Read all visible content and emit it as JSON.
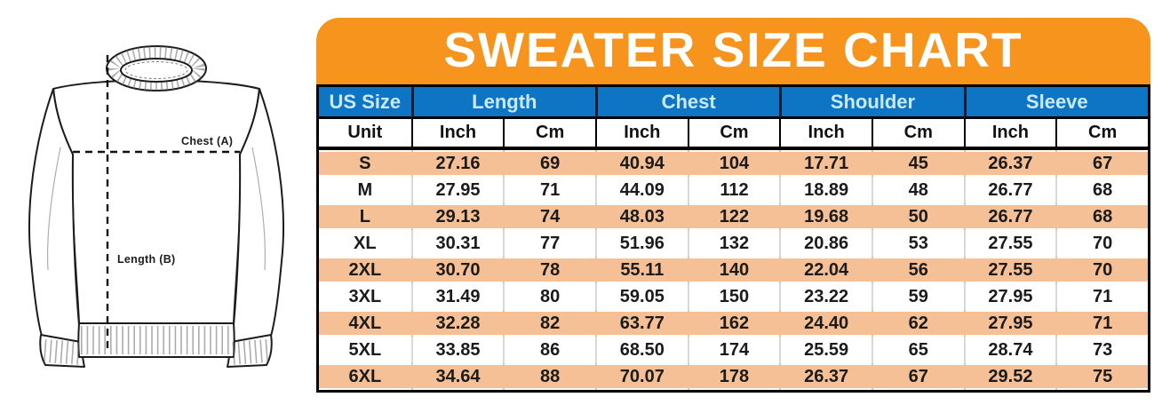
{
  "figure": {
    "chest_label": "Chest (A)",
    "length_label": "Length (B)"
  },
  "banner": {
    "title": "SWEATER SIZE CHART"
  },
  "table": {
    "group_headers": [
      {
        "label": "US Size"
      },
      {
        "label": "Length"
      },
      {
        "label": "Chest"
      },
      {
        "label": "Shoulder"
      },
      {
        "label": "Sleeve"
      }
    ],
    "unit_row": [
      "Unit",
      "Inch",
      "Cm",
      "Inch",
      "Cm",
      "Inch",
      "Cm",
      "Inch",
      "Cm"
    ],
    "rows": [
      {
        "size": "S",
        "values": [
          "27.16",
          "69",
          "40.94",
          "104",
          "17.71",
          "45",
          "26.37",
          "67"
        ]
      },
      {
        "size": "M",
        "values": [
          "27.95",
          "71",
          "44.09",
          "112",
          "18.89",
          "48",
          "26.77",
          "68"
        ]
      },
      {
        "size": "L",
        "values": [
          "29.13",
          "74",
          "48.03",
          "122",
          "19.68",
          "50",
          "26.77",
          "68"
        ]
      },
      {
        "size": "XL",
        "values": [
          "30.31",
          "77",
          "51.96",
          "132",
          "20.86",
          "53",
          "27.55",
          "70"
        ]
      },
      {
        "size": "2XL",
        "values": [
          "30.70",
          "78",
          "55.11",
          "140",
          "22.04",
          "56",
          "27.55",
          "70"
        ]
      },
      {
        "size": "3XL",
        "values": [
          "31.49",
          "80",
          "59.05",
          "150",
          "23.22",
          "59",
          "27.95",
          "71"
        ]
      },
      {
        "size": "4XL",
        "values": [
          "32.28",
          "82",
          "63.77",
          "162",
          "24.40",
          "62",
          "27.95",
          "71"
        ]
      },
      {
        "size": "5XL",
        "values": [
          "33.85",
          "86",
          "68.50",
          "174",
          "25.59",
          "65",
          "28.74",
          "73"
        ]
      },
      {
        "size": "6XL",
        "values": [
          "34.64",
          "88",
          "70.07",
          "178",
          "26.37",
          "67",
          "29.52",
          "75"
        ]
      }
    ]
  },
  "colors": {
    "banner_orange": "#F7941E",
    "row_peach": "#F5C096",
    "header_blue": "#0E74C4",
    "header_text": "#C9E9FD",
    "header_divider": "#101A33"
  },
  "chart_data": {
    "type": "table",
    "title": "SWEATER SIZE CHART",
    "column_groups": [
      "US Size",
      "Length",
      "Chest",
      "Shoulder",
      "Sleeve"
    ],
    "columns": [
      "US Size",
      "Length Inch",
      "Length Cm",
      "Chest Inch",
      "Chest Cm",
      "Shoulder Inch",
      "Shoulder Cm",
      "Sleeve Inch",
      "Sleeve Cm"
    ],
    "rows": [
      [
        "S",
        27.16,
        69,
        40.94,
        104,
        17.71,
        45,
        26.37,
        67
      ],
      [
        "M",
        27.95,
        71,
        44.09,
        112,
        18.89,
        48,
        26.77,
        68
      ],
      [
        "L",
        29.13,
        74,
        48.03,
        122,
        19.68,
        50,
        26.77,
        68
      ],
      [
        "XL",
        30.31,
        77,
        51.96,
        132,
        20.86,
        53,
        27.55,
        70
      ],
      [
        "2XL",
        30.7,
        78,
        55.11,
        140,
        22.04,
        56,
        27.55,
        70
      ],
      [
        "3XL",
        31.49,
        80,
        59.05,
        150,
        23.22,
        59,
        27.95,
        71
      ],
      [
        "4XL",
        32.28,
        82,
        63.77,
        162,
        24.4,
        62,
        27.95,
        71
      ],
      [
        "5XL",
        33.85,
        86,
        68.5,
        174,
        25.59,
        65,
        28.74,
        73
      ],
      [
        "6XL",
        34.64,
        88,
        70.07,
        178,
        26.37,
        67,
        29.52,
        75
      ]
    ],
    "measurement_key": {
      "A": "Chest",
      "B": "Length"
    }
  }
}
